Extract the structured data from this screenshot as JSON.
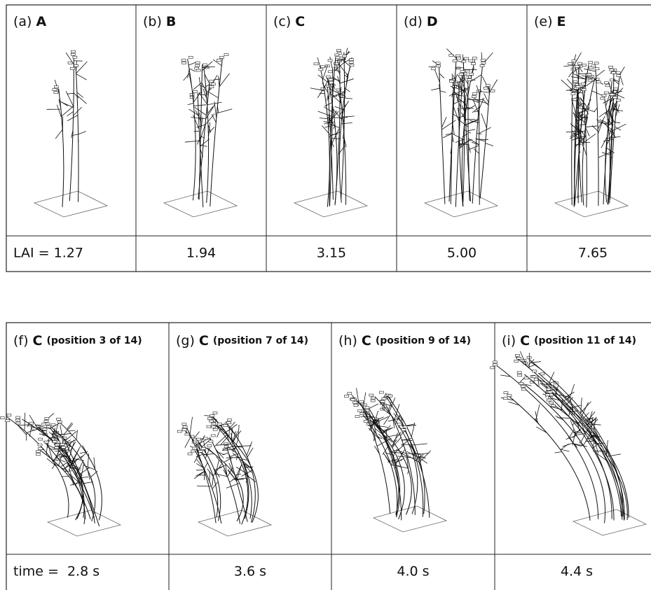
{
  "top_panels": [
    {
      "tag": "(a)",
      "label": "A",
      "value": "LAI = 1.27"
    },
    {
      "tag": "(b)",
      "label": "B",
      "value": "1.94"
    },
    {
      "tag": "(c)",
      "label": "C",
      "value": "3.15"
    },
    {
      "tag": "(d)",
      "label": "D",
      "value": "5.00"
    },
    {
      "tag": "(e)",
      "label": "E",
      "value": "7.65"
    }
  ],
  "bottom_panels": [
    {
      "tag": "(f)",
      "label": "C",
      "position": "(position 3 of 14)",
      "value": "time =  2.8 s"
    },
    {
      "tag": "(g)",
      "label": "C",
      "position": "(position 7 of 14)",
      "value": "3.6 s"
    },
    {
      "tag": "(h)",
      "label": "C",
      "position": "(position 9 of 14)",
      "value": "4.0 s"
    },
    {
      "tag": "(i)",
      "label": "C",
      "position": "(position 11 of 14)",
      "value": "4.4 s"
    }
  ]
}
